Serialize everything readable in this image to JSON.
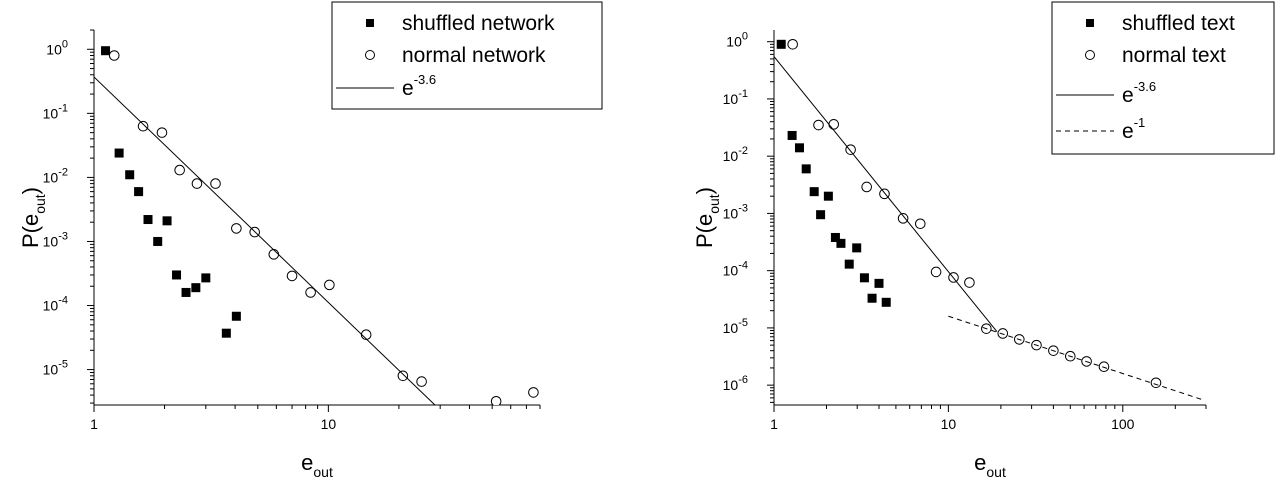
{
  "chart_data": [
    {
      "type": "scatter",
      "xlabel": "e",
      "xlabel_sub": "out",
      "ylabel": "P(e",
      "ylabel_sub": "out",
      "ylabel_close": ")",
      "xscale": "log",
      "yscale": "log",
      "xlim": [
        1,
        80
      ],
      "ylim": [
        2.8e-06,
        2
      ],
      "xticks": [
        {
          "v": 1,
          "label": "1"
        },
        {
          "v": 10,
          "label": "10"
        }
      ],
      "yticks": [
        {
          "v": 1,
          "base": "10",
          "exp": "0"
        },
        {
          "v": 0.1,
          "base": "10",
          "exp": "-1"
        },
        {
          "v": 0.01,
          "base": "10",
          "exp": "-2"
        },
        {
          "v": 0.001,
          "base": "10",
          "exp": "-3"
        },
        {
          "v": 0.0001,
          "base": "10",
          "exp": "-4"
        },
        {
          "v": 1e-05,
          "base": "10",
          "exp": "-5"
        }
      ],
      "legend_position": "top-right",
      "series": [
        {
          "name": "shuffled network",
          "marker": "square",
          "x": [
            1.12,
            1.28,
            1.42,
            1.55,
            1.7,
            1.87,
            2.05,
            2.25,
            2.47,
            2.72,
            3.0,
            3.67,
            4.05
          ],
          "y": [
            0.95,
            0.024,
            0.011,
            0.006,
            0.0022,
            0.001,
            0.0021,
            0.0003,
            0.00016,
            0.00019,
            0.00027,
            3.7e-05,
            6.8e-05
          ]
        },
        {
          "name": "normal network",
          "marker": "circle",
          "x": [
            1.22,
            1.62,
            1.95,
            2.32,
            2.75,
            3.3,
            4.05,
            4.85,
            5.85,
            7.0,
            8.4,
            10.1,
            14.5,
            20.8,
            25.0,
            52,
            75
          ],
          "y": [
            0.8,
            0.063,
            0.05,
            0.013,
            0.008,
            0.008,
            0.0016,
            0.0014,
            0.00063,
            0.00029,
            0.00016,
            0.00021,
            3.5e-05,
            8e-06,
            6.5e-06,
            3.2e-06,
            4.4e-06
          ]
        },
        {
          "name": "e",
          "name_exp": "-3.6",
          "marker": "line-solid",
          "line": [
            [
              1,
              0.37
            ],
            [
              28.5,
              2.8e-06
            ]
          ]
        }
      ]
    },
    {
      "type": "scatter",
      "xlabel": "e",
      "xlabel_sub": "out",
      "ylabel": "P(e",
      "ylabel_sub": "out",
      "ylabel_close": ")",
      "xscale": "log",
      "yscale": "log",
      "xlim": [
        1,
        300
      ],
      "ylim": [
        4.5e-07,
        1.6
      ],
      "xticks": [
        {
          "v": 1,
          "label": "1"
        },
        {
          "v": 10,
          "label": "10"
        },
        {
          "v": 100,
          "label": "100"
        }
      ],
      "yticks": [
        {
          "v": 1,
          "base": "10",
          "exp": "0"
        },
        {
          "v": 0.1,
          "base": "10",
          "exp": "-1"
        },
        {
          "v": 0.01,
          "base": "10",
          "exp": "-2"
        },
        {
          "v": 0.001,
          "base": "10",
          "exp": "-3"
        },
        {
          "v": 0.0001,
          "base": "10",
          "exp": "-4"
        },
        {
          "v": 1e-05,
          "base": "10",
          "exp": "-5"
        },
        {
          "v": 1e-06,
          "base": "10",
          "exp": "-6"
        }
      ],
      "legend_position": "top-right",
      "series": [
        {
          "name": "shuffled text",
          "marker": "square",
          "x": [
            1.1,
            1.27,
            1.4,
            1.53,
            1.7,
            1.85,
            2.05,
            2.25,
            2.42,
            2.7,
            2.98,
            3.3,
            3.65,
            4.0,
            4.4
          ],
          "y": [
            0.9,
            0.023,
            0.014,
            0.006,
            0.0024,
            0.00095,
            0.002,
            0.00038,
            0.0003,
            0.00013,
            0.00025,
            7.5e-05,
            3.3e-05,
            6e-05,
            2.8e-05
          ]
        },
        {
          "name": "normal text",
          "marker": "circle",
          "x": [
            1.28,
            1.8,
            2.2,
            2.75,
            3.4,
            4.3,
            5.5,
            6.9,
            8.5,
            10.7,
            13.2,
            16.5,
            20.5,
            25.5,
            32,
            40,
            50,
            62,
            78,
            155
          ],
          "y": [
            0.9,
            0.035,
            0.036,
            0.013,
            0.0029,
            0.0022,
            0.00082,
            0.00066,
            9.5e-05,
            7.6e-05,
            6.2e-05,
            9.7e-06,
            8e-06,
            6.3e-06,
            5e-06,
            4e-06,
            3.2e-06,
            2.6e-06,
            2.1e-06,
            1.1e-06
          ]
        },
        {
          "name": "e",
          "name_exp": "-3.6",
          "marker": "line-solid",
          "line": [
            [
              1,
              0.55
            ],
            [
              19,
              8.6e-06
            ]
          ]
        },
        {
          "name": "e",
          "name_exp": "-1",
          "marker": "line-dashed",
          "line": [
            [
              10,
              1.6e-05
            ],
            [
              290,
              5.5e-07
            ]
          ]
        }
      ]
    }
  ]
}
